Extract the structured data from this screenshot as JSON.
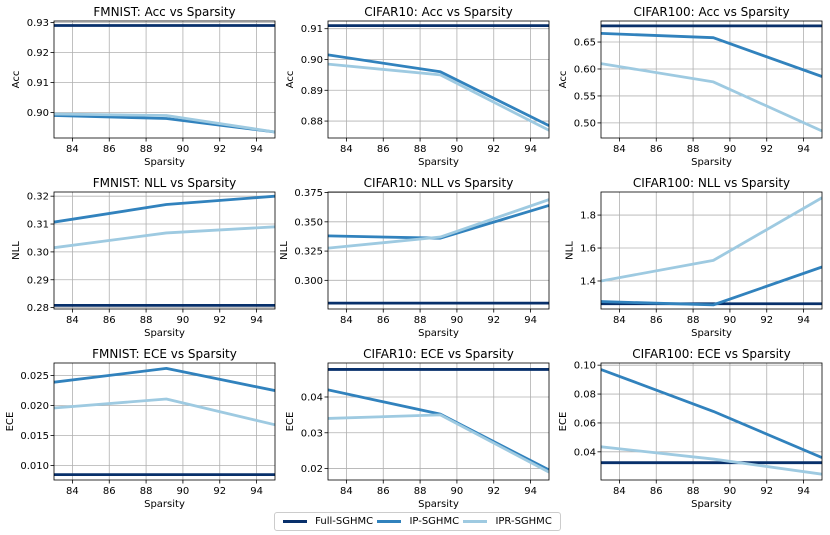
{
  "legend": {
    "items": [
      {
        "label": "Full-SGHMC",
        "color": "#08306b"
      },
      {
        "label": "IP-SGHMC",
        "color": "#3182bd"
      },
      {
        "label": "IPR-SGHMC",
        "color": "#9ecae1"
      }
    ],
    "placement": "bottom-center"
  },
  "chart_data": [
    {
      "type": "line",
      "title": "FMNIST: Acc vs Sparsity",
      "xlabel": "Sparsity",
      "ylabel": "Acc",
      "x": [
        83,
        89.1,
        95
      ],
      "xlim": [
        83,
        95
      ],
      "xticks": [
        84,
        86,
        88,
        90,
        92,
        94
      ],
      "ylim": [
        0.8915,
        0.9305
      ],
      "yticks": [
        0.9,
        0.91,
        0.92,
        0.93
      ],
      "ytick_labels": [
        "0.90",
        "0.91",
        "0.92",
        "0.93"
      ],
      "grid": true,
      "series": [
        {
          "name": "Full-SGHMC",
          "values": [
            0.929,
            0.929,
            0.929
          ]
        },
        {
          "name": "IP-SGHMC",
          "values": [
            0.899,
            0.898,
            0.8935
          ]
        },
        {
          "name": "IPR-SGHMC",
          "values": [
            0.8995,
            0.899,
            0.8935
          ]
        }
      ]
    },
    {
      "type": "line",
      "title": "CIFAR10: Acc vs Sparsity",
      "xlabel": "Sparsity",
      "ylabel": "Acc",
      "x": [
        83,
        89.1,
        95
      ],
      "xlim": [
        83,
        95
      ],
      "xticks": [
        84,
        86,
        88,
        90,
        92,
        94
      ],
      "ylim": [
        0.8745,
        0.9125
      ],
      "yticks": [
        0.88,
        0.89,
        0.9,
        0.91
      ],
      "ytick_labels": [
        "0.88",
        "0.89",
        "0.90",
        "0.91"
      ],
      "grid": true,
      "series": [
        {
          "name": "Full-SGHMC",
          "values": [
            0.911,
            0.911,
            0.911
          ]
        },
        {
          "name": "IP-SGHMC",
          "values": [
            0.9015,
            0.896,
            0.8785
          ]
        },
        {
          "name": "IPR-SGHMC",
          "values": [
            0.8985,
            0.895,
            0.877
          ]
        }
      ]
    },
    {
      "type": "line",
      "title": "CIFAR100: Acc vs Sparsity",
      "xlabel": "Sparsity",
      "ylabel": "Acc",
      "x": [
        83,
        89.1,
        95
      ],
      "xlim": [
        83,
        95
      ],
      "xticks": [
        84,
        86,
        88,
        90,
        92,
        94
      ],
      "ylim": [
        0.472,
        0.689
      ],
      "yticks": [
        0.5,
        0.55,
        0.6,
        0.65
      ],
      "ytick_labels": [
        "0.50",
        "0.55",
        "0.60",
        "0.65"
      ],
      "grid": true,
      "series": [
        {
          "name": "Full-SGHMC",
          "values": [
            0.68,
            0.68,
            0.68
          ]
        },
        {
          "name": "IP-SGHMC",
          "values": [
            0.666,
            0.658,
            0.586
          ]
        },
        {
          "name": "IPR-SGHMC",
          "values": [
            0.61,
            0.576,
            0.485
          ]
        }
      ]
    },
    {
      "type": "line",
      "title": "FMNIST: NLL vs Sparsity",
      "xlabel": "Sparsity",
      "ylabel": "NLL",
      "x": [
        83,
        89.1,
        95
      ],
      "xlim": [
        83,
        95
      ],
      "xticks": [
        84,
        86,
        88,
        90,
        92,
        94
      ],
      "ylim": [
        0.2795,
        0.3215
      ],
      "yticks": [
        0.28,
        0.29,
        0.3,
        0.31,
        0.32
      ],
      "ytick_labels": [
        "0.28",
        "0.29",
        "0.30",
        "0.31",
        "0.32"
      ],
      "grid": true,
      "series": [
        {
          "name": "Full-SGHMC",
          "values": [
            0.2808,
            0.2808,
            0.2808
          ]
        },
        {
          "name": "IP-SGHMC",
          "values": [
            0.3107,
            0.317,
            0.32
          ]
        },
        {
          "name": "IPR-SGHMC",
          "values": [
            0.3015,
            0.3068,
            0.309
          ]
        }
      ]
    },
    {
      "type": "line",
      "title": "CIFAR10: NLL vs Sparsity",
      "xlabel": "Sparsity",
      "ylabel": "NLL",
      "x": [
        83,
        89.1,
        95
      ],
      "xlim": [
        83,
        95
      ],
      "xticks": [
        84,
        86,
        88,
        90,
        92,
        94
      ],
      "ylim": [
        0.2755,
        0.3755
      ],
      "yticks": [
        0.3,
        0.325,
        0.35,
        0.375
      ],
      "ytick_labels": [
        "0.300",
        "0.325",
        "0.350",
        "0.375"
      ],
      "grid": true,
      "series": [
        {
          "name": "Full-SGHMC",
          "values": [
            0.2805,
            0.2805,
            0.2805
          ]
        },
        {
          "name": "IP-SGHMC",
          "values": [
            0.338,
            0.336,
            0.364
          ]
        },
        {
          "name": "IPR-SGHMC",
          "values": [
            0.3275,
            0.337,
            0.369
          ]
        }
      ]
    },
    {
      "type": "line",
      "title": "CIFAR100: NLL vs Sparsity",
      "xlabel": "Sparsity",
      "ylabel": "NLL",
      "x": [
        83,
        89.1,
        95
      ],
      "xlim": [
        83,
        95
      ],
      "xticks": [
        84,
        86,
        88,
        90,
        92,
        94
      ],
      "ylim": [
        1.23,
        1.94
      ],
      "yticks": [
        1.4,
        1.6,
        1.8
      ],
      "ytick_labels": [
        "1.4",
        "1.6",
        "1.8"
      ],
      "grid": true,
      "series": [
        {
          "name": "Full-SGHMC",
          "values": [
            1.262,
            1.262,
            1.262
          ]
        },
        {
          "name": "IP-SGHMC",
          "values": [
            1.275,
            1.255,
            1.485
          ]
        },
        {
          "name": "IPR-SGHMC",
          "values": [
            1.4,
            1.525,
            1.905
          ]
        }
      ]
    },
    {
      "type": "line",
      "title": "FMNIST: ECE vs Sparsity",
      "xlabel": "Sparsity",
      "ylabel": "ECE",
      "x": [
        83,
        89.1,
        95
      ],
      "xlim": [
        83,
        95
      ],
      "xticks": [
        84,
        86,
        88,
        90,
        92,
        94
      ],
      "ylim": [
        0.0076,
        0.0271
      ],
      "yticks": [
        0.01,
        0.015,
        0.02,
        0.025
      ],
      "ytick_labels": [
        "0.010",
        "0.015",
        "0.020",
        "0.025"
      ],
      "grid": true,
      "series": [
        {
          "name": "Full-SGHMC",
          "values": [
            0.0085,
            0.0085,
            0.0085
          ]
        },
        {
          "name": "IP-SGHMC",
          "values": [
            0.0239,
            0.0262,
            0.0225
          ]
        },
        {
          "name": "IPR-SGHMC",
          "values": [
            0.0196,
            0.0211,
            0.0168
          ]
        }
      ]
    },
    {
      "type": "line",
      "title": "CIFAR10: ECE vs Sparsity",
      "xlabel": "Sparsity",
      "ylabel": "ECE",
      "x": [
        83,
        89.1,
        95
      ],
      "xlim": [
        83,
        95
      ],
      "xticks": [
        84,
        86,
        88,
        90,
        92,
        94
      ],
      "ylim": [
        0.0168,
        0.0495
      ],
      "yticks": [
        0.02,
        0.03,
        0.04
      ],
      "ytick_labels": [
        "0.02",
        "0.03",
        "0.04"
      ],
      "grid": true,
      "series": [
        {
          "name": "Full-SGHMC",
          "values": [
            0.0477,
            0.0477,
            0.0477
          ]
        },
        {
          "name": "IP-SGHMC",
          "values": [
            0.042,
            0.0352,
            0.0196
          ]
        },
        {
          "name": "IPR-SGHMC",
          "values": [
            0.034,
            0.035,
            0.019
          ]
        }
      ]
    },
    {
      "type": "line",
      "title": "CIFAR100: ECE vs Sparsity",
      "xlabel": "Sparsity",
      "ylabel": "ECE",
      "x": [
        83,
        89.1,
        95
      ],
      "xlim": [
        83,
        95
      ],
      "xticks": [
        84,
        86,
        88,
        90,
        92,
        94
      ],
      "ylim": [
        0.0205,
        0.1015
      ],
      "yticks": [
        0.04,
        0.06,
        0.08,
        0.1
      ],
      "ytick_labels": [
        "0.04",
        "0.06",
        "0.08",
        "0.10"
      ],
      "grid": true,
      "series": [
        {
          "name": "Full-SGHMC",
          "values": [
            0.0325,
            0.0325,
            0.0325
          ]
        },
        {
          "name": "IP-SGHMC",
          "values": [
            0.097,
            0.068,
            0.036
          ]
        },
        {
          "name": "IPR-SGHMC",
          "values": [
            0.0435,
            0.035,
            0.0245
          ]
        }
      ]
    }
  ]
}
